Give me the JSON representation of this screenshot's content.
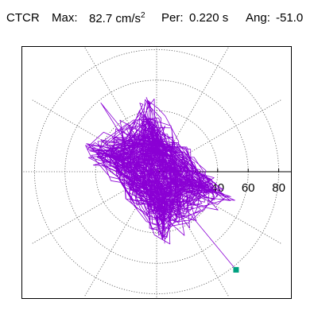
{
  "header": {
    "station": "CTCR",
    "max_label": "Max:",
    "max_value": "82.7",
    "max_unit_base": "cm/s",
    "max_unit_exp": "2",
    "per_label": "Per:",
    "per_value": "0.220 s",
    "ang_label": "Ang:",
    "ang_value": "-51.0"
  },
  "chart_data": {
    "type": "polar",
    "title": "",
    "radial_ticks": [
      "40",
      "60",
      "80"
    ],
    "radial_tick_values": [
      40,
      60,
      80
    ],
    "radial_rings": [
      20,
      40,
      60,
      80
    ],
    "radial_max": 82.7,
    "max_amplitude": 82.7,
    "period_s": 0.22,
    "azimuth_deg": -51.0,
    "spoke_interval_deg": 30,
    "grid": true,
    "trace_color": "#8a00d4",
    "marker_color": "#00a080",
    "marker_radius": 82.7,
    "marker_angle_deg": -51.0,
    "trace_loops": 120
  }
}
